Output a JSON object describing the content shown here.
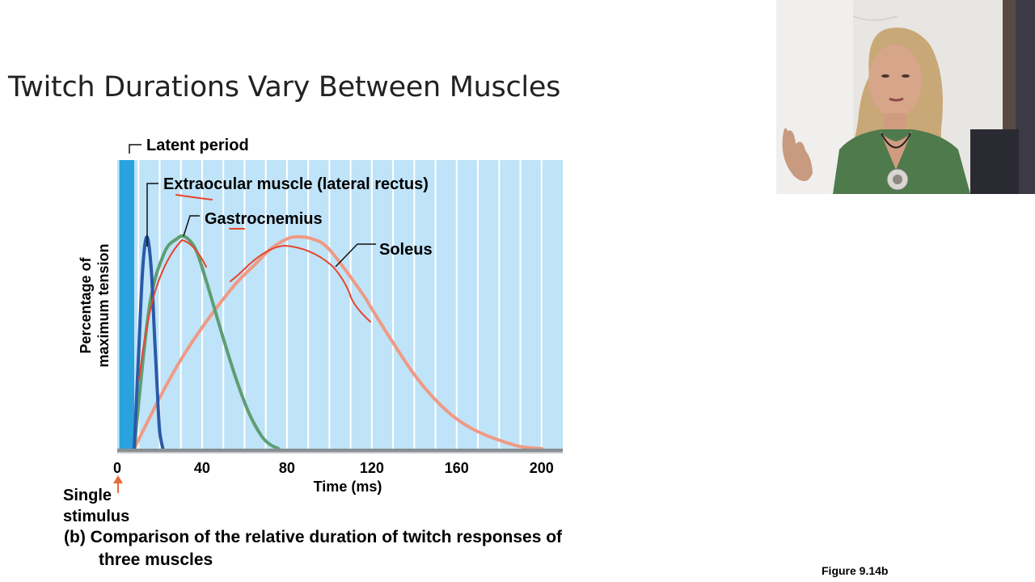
{
  "slide": {
    "title": "Twitch Durations Vary Between Muscles",
    "figure_ref": "Figure 9.14b"
  },
  "colors": {
    "plot_bg": "#bfe3f8",
    "latent_band": "#2aa2de",
    "extraocular": "#2a5aa8",
    "gastrocnemius": "#5e9e72",
    "soleus": "#ef9a84",
    "annotation_pen": "#e8442e",
    "stimulus_arrow": "#e86a3a"
  },
  "chart_data": {
    "type": "line",
    "title": "(b) Comparison of the relative duration of twitch responses of",
    "title_line2": "three muscles",
    "xlabel": "Time (ms)",
    "ylabel_line1": "Percentage of",
    "ylabel_line2": "maximum tension",
    "xlim": [
      0,
      210
    ],
    "ylim": [
      0,
      100
    ],
    "xticks": [
      0,
      40,
      80,
      120,
      160,
      200
    ],
    "grid_x": [
      10,
      20,
      30,
      40,
      50,
      60,
      70,
      80,
      90,
      100,
      110,
      120,
      130,
      140,
      150,
      160,
      170,
      180,
      190,
      200
    ],
    "latent_period": {
      "label": "Latent period",
      "start": 1,
      "end": 8
    },
    "stimulus": {
      "label_line1": "Single",
      "label_line2": "stimulus",
      "time": 0
    },
    "series": [
      {
        "name": "Extraocular muscle (lateral rectus)",
        "color_key": "extraocular",
        "x": [
          8,
          10,
          12,
          14,
          16,
          17.5,
          19,
          20,
          21.5
        ],
        "y": [
          0,
          43,
          85,
          100,
          85,
          55,
          25,
          8,
          0
        ]
      },
      {
        "name": "Gastrocnemius",
        "color_key": "gastrocnemius",
        "x": [
          8,
          15,
          22,
          28,
          32,
          37,
          42,
          50,
          56,
          62,
          68,
          72,
          76
        ],
        "y": [
          0,
          66,
          92,
          99,
          100,
          94,
          79,
          52,
          33,
          17,
          6,
          2,
          0
        ]
      },
      {
        "name": "Soleus",
        "color_key": "soleus",
        "x": [
          8,
          20,
          30,
          42,
          56,
          65,
          72,
          80,
          85,
          92,
          100,
          115,
          120,
          130,
          140,
          150,
          160,
          170,
          180,
          190,
          200
        ],
        "y": [
          0,
          24,
          42,
          60,
          78,
          87,
          94,
          99,
          100,
          99,
          94,
          74,
          66,
          50,
          35,
          23,
          14,
          8,
          4,
          1,
          0
        ]
      }
    ]
  }
}
